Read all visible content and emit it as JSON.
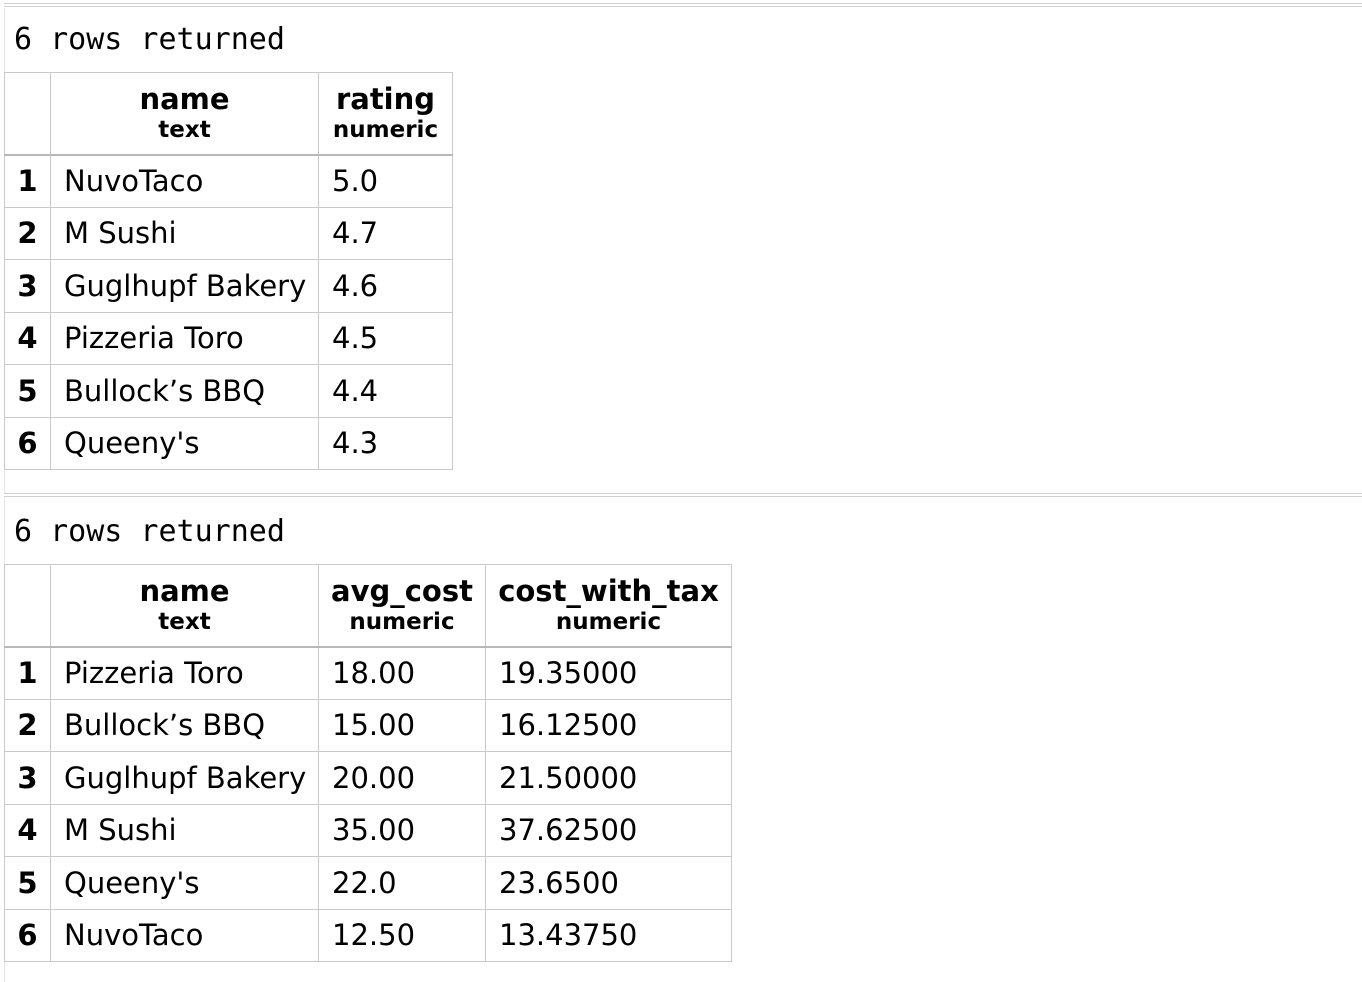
{
  "results": [
    {
      "caption": "6 rows returned",
      "columns": [
        {
          "name": "name",
          "type": "text"
        },
        {
          "name": "rating",
          "type": "numeric"
        }
      ],
      "rows": [
        {
          "num": "1",
          "cells": [
            "NuvoTaco",
            "5.0"
          ]
        },
        {
          "num": "2",
          "cells": [
            "M Sushi",
            "4.7"
          ]
        },
        {
          "num": "3",
          "cells": [
            "Guglhupf Bakery",
            "4.6"
          ]
        },
        {
          "num": "4",
          "cells": [
            "Pizzeria Toro",
            "4.5"
          ]
        },
        {
          "num": "5",
          "cells": [
            "Bullock’s BBQ",
            "4.4"
          ]
        },
        {
          "num": "6",
          "cells": [
            "Queeny's",
            "4.3"
          ]
        }
      ]
    },
    {
      "caption": "6 rows returned",
      "columns": [
        {
          "name": "name",
          "type": "text"
        },
        {
          "name": "avg_cost",
          "type": "numeric"
        },
        {
          "name": "cost_with_tax",
          "type": "numeric"
        }
      ],
      "rows": [
        {
          "num": "1",
          "cells": [
            "Pizzeria Toro",
            "18.00",
            "19.35000"
          ]
        },
        {
          "num": "2",
          "cells": [
            "Bullock’s BBQ",
            "15.00",
            "16.12500"
          ]
        },
        {
          "num": "3",
          "cells": [
            "Guglhupf Bakery",
            "20.00",
            "21.50000"
          ]
        },
        {
          "num": "4",
          "cells": [
            "M Sushi",
            "35.00",
            "37.62500"
          ]
        },
        {
          "num": "5",
          "cells": [
            "Queeny's",
            "22.0",
            "23.6500"
          ]
        },
        {
          "num": "6",
          "cells": [
            "NuvoTaco",
            "12.50",
            "13.43750"
          ]
        }
      ]
    }
  ]
}
